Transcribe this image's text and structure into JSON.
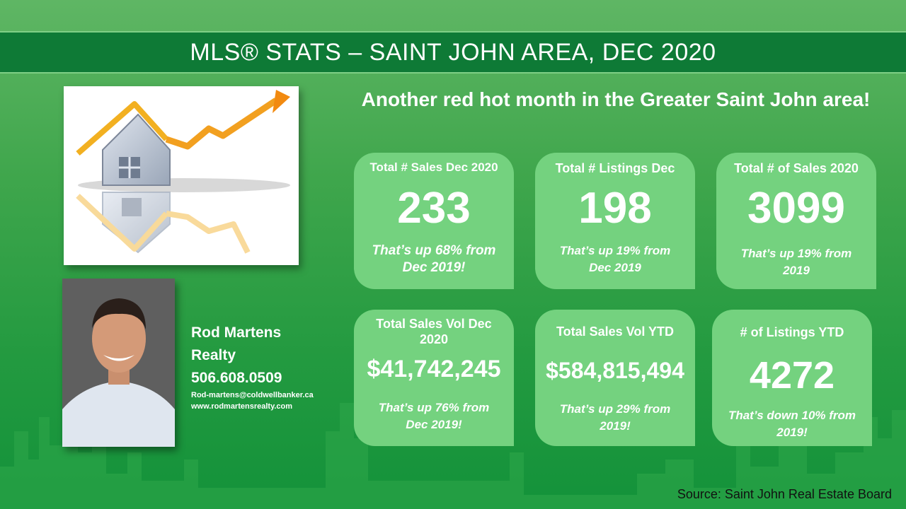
{
  "title": "MLS® STATS – SAINT JOHN AREA, DEC 2020",
  "headline": "Another red hot month in the Greater Saint John area!",
  "agent": {
    "name_line1": "Rod Martens",
    "name_line2": "Realty",
    "phone": "506.608.0509",
    "email": "Rod-martens@coldwellbanker.ca",
    "website": "www.rodmartensrealty.com"
  },
  "cards": [
    {
      "label": "Total # Sales Dec 2020",
      "value": "233",
      "note": "That’s up 68% from Dec 2019!"
    },
    {
      "label": "Total # Listings Dec",
      "value": "198",
      "note": "That’s up 19% from Dec 2019"
    },
    {
      "label": "Total # of Sales 2020",
      "value": "3099",
      "note": "That’s up 19% from 2019"
    },
    {
      "label": "Total Sales Vol Dec 2020",
      "value": "$41,742,245",
      "note": "That’s up 76% from Dec 2019!"
    },
    {
      "label": "Total Sales Vol YTD",
      "value": "$584,815,494",
      "note": "That’s up 29% from 2019!"
    },
    {
      "label": "# of Listings YTD",
      "value": "4272",
      "note": "That’s down 10% from 2019!"
    }
  ],
  "source": "Source: Saint John Real Estate Board",
  "colors": {
    "card": "#74d27f",
    "title_bar": "#0e7a36",
    "arrow": "#f0a020"
  }
}
